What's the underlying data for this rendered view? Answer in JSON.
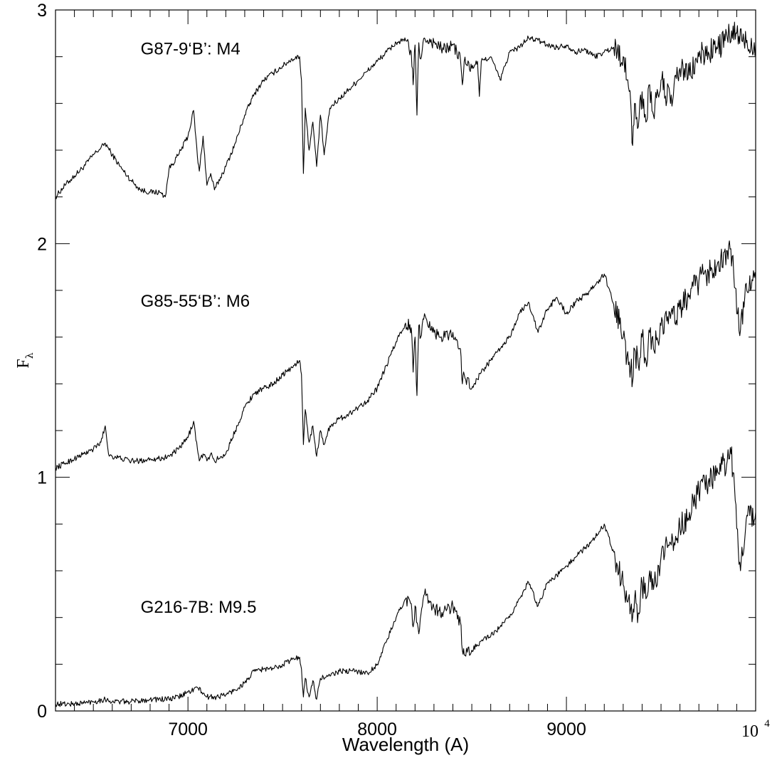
{
  "chart_data": {
    "type": "line",
    "title": "",
    "xlabel": "Wavelength (A)",
    "ylabel": "F",
    "ylabel_subscript": "λ",
    "xlim": [
      6300,
      10000
    ],
    "ylim": [
      0,
      3
    ],
    "xticks": [
      {
        "value": 7000,
        "label": "7000"
      },
      {
        "value": 8000,
        "label": "8000"
      },
      {
        "value": 9000,
        "label": "9000"
      }
    ],
    "x_end_label": {
      "base": "10",
      "exponent": "4"
    },
    "yticks": [
      {
        "value": 0,
        "label": "0"
      },
      {
        "value": 1,
        "label": "1"
      },
      {
        "value": 2,
        "label": "2"
      },
      {
        "value": 3,
        "label": "3"
      }
    ],
    "y_minor_step": 0.2,
    "x_minor_step": 100,
    "grid": false,
    "legend": "none",
    "line_color": "#000000",
    "annotations": [
      {
        "text": "G87-9‘B’: M4",
        "x": 6750,
        "y": 2.81
      },
      {
        "text": "G85-55‘B’: M6",
        "x": 6750,
        "y": 1.73
      },
      {
        "text": "G216-7B: M9.5",
        "x": 6750,
        "y": 0.42
      }
    ],
    "series": [
      {
        "spectral_type": "M4",
        "x": [
          6300,
          6350,
          6400,
          6450,
          6500,
          6540,
          6563,
          6600,
          6650,
          6700,
          6750,
          6800,
          6850,
          6880,
          6900,
          6950,
          7000,
          7030,
          7050,
          7060,
          7080,
          7100,
          7120,
          7140,
          7200,
          7250,
          7300,
          7350,
          7400,
          7450,
          7500,
          7550,
          7590,
          7600,
          7610,
          7620,
          7640,
          7660,
          7680,
          7700,
          7720,
          7750,
          7800,
          7850,
          7900,
          7950,
          8000,
          8050,
          8100,
          8150,
          8180,
          8190,
          8200,
          8210,
          8220,
          8230,
          8250,
          8300,
          8350,
          8400,
          8440,
          8450,
          8460,
          8500,
          8530,
          8540,
          8550,
          8600,
          8650,
          8700,
          8750,
          8800,
          8850,
          8900,
          8950,
          9000,
          9050,
          9100,
          9150,
          9200,
          9250,
          9300,
          9320,
          9340,
          9350,
          9360,
          9380,
          9400,
          9420,
          9440,
          9460,
          9500,
          9550,
          9600,
          9650,
          9700,
          9750,
          9800,
          9850,
          9900,
          9950,
          10000
        ],
        "y": [
          2.2,
          2.25,
          2.29,
          2.33,
          2.38,
          2.41,
          2.43,
          2.38,
          2.32,
          2.27,
          2.23,
          2.22,
          2.22,
          2.2,
          2.32,
          2.38,
          2.46,
          2.57,
          2.37,
          2.31,
          2.46,
          2.25,
          2.3,
          2.23,
          2.33,
          2.43,
          2.55,
          2.64,
          2.7,
          2.73,
          2.76,
          2.79,
          2.8,
          2.7,
          2.3,
          2.58,
          2.4,
          2.52,
          2.33,
          2.55,
          2.38,
          2.58,
          2.62,
          2.66,
          2.7,
          2.74,
          2.78,
          2.82,
          2.86,
          2.87,
          2.82,
          2.68,
          2.85,
          2.55,
          2.86,
          2.79,
          2.88,
          2.86,
          2.83,
          2.85,
          2.79,
          2.68,
          2.78,
          2.75,
          2.78,
          2.63,
          2.78,
          2.8,
          2.7,
          2.82,
          2.84,
          2.88,
          2.87,
          2.85,
          2.84,
          2.85,
          2.82,
          2.83,
          2.8,
          2.82,
          2.84,
          2.8,
          2.7,
          2.6,
          2.42,
          2.6,
          2.5,
          2.65,
          2.52,
          2.68,
          2.55,
          2.7,
          2.6,
          2.75,
          2.72,
          2.8,
          2.82,
          2.84,
          2.88,
          2.9,
          2.86,
          2.85
        ]
      },
      {
        "spectral_type": "M6",
        "x": [
          6300,
          6350,
          6400,
          6450,
          6500,
          6540,
          6563,
          6580,
          6600,
          6650,
          6700,
          6750,
          6800,
          6850,
          6900,
          6950,
          7000,
          7030,
          7050,
          7060,
          7080,
          7100,
          7120,
          7140,
          7200,
          7250,
          7300,
          7350,
          7400,
          7450,
          7500,
          7550,
          7590,
          7600,
          7610,
          7620,
          7640,
          7660,
          7680,
          7700,
          7720,
          7750,
          7800,
          7850,
          7900,
          7950,
          8000,
          8050,
          8100,
          8150,
          8180,
          8190,
          8200,
          8210,
          8220,
          8230,
          8250,
          8300,
          8350,
          8400,
          8440,
          8450,
          8460,
          8500,
          8550,
          8600,
          8650,
          8700,
          8750,
          8800,
          8850,
          8900,
          8950,
          9000,
          9050,
          9100,
          9150,
          9200,
          9250,
          9300,
          9320,
          9340,
          9350,
          9360,
          9380,
          9400,
          9420,
          9440,
          9460,
          9500,
          9550,
          9600,
          9650,
          9700,
          9750,
          9800,
          9850,
          9880,
          9900,
          9920,
          9950,
          10000
        ],
        "y": [
          1.04,
          1.06,
          1.08,
          1.1,
          1.12,
          1.15,
          1.22,
          1.1,
          1.09,
          1.08,
          1.07,
          1.07,
          1.08,
          1.08,
          1.09,
          1.12,
          1.17,
          1.24,
          1.12,
          1.07,
          1.1,
          1.07,
          1.1,
          1.07,
          1.1,
          1.2,
          1.3,
          1.36,
          1.38,
          1.4,
          1.44,
          1.47,
          1.5,
          1.44,
          1.14,
          1.29,
          1.15,
          1.22,
          1.09,
          1.2,
          1.14,
          1.22,
          1.25,
          1.27,
          1.3,
          1.33,
          1.38,
          1.48,
          1.58,
          1.66,
          1.64,
          1.45,
          1.6,
          1.35,
          1.65,
          1.6,
          1.7,
          1.62,
          1.6,
          1.62,
          1.55,
          1.4,
          1.44,
          1.38,
          1.45,
          1.5,
          1.55,
          1.6,
          1.7,
          1.75,
          1.62,
          1.72,
          1.77,
          1.7,
          1.75,
          1.78,
          1.82,
          1.87,
          1.74,
          1.6,
          1.52,
          1.47,
          1.41,
          1.55,
          1.48,
          1.6,
          1.5,
          1.62,
          1.55,
          1.65,
          1.68,
          1.72,
          1.78,
          1.84,
          1.88,
          1.92,
          1.97,
          1.95,
          1.7,
          1.63,
          1.83,
          1.85
        ]
      },
      {
        "spectral_type": "M9.5",
        "x": [
          6300,
          6400,
          6500,
          6563,
          6600,
          6700,
          6800,
          6900,
          6950,
          7000,
          7050,
          7100,
          7150,
          7200,
          7250,
          7300,
          7350,
          7400,
          7450,
          7500,
          7550,
          7590,
          7600,
          7610,
          7620,
          7640,
          7660,
          7680,
          7700,
          7750,
          7800,
          7850,
          7900,
          7950,
          8000,
          8050,
          8100,
          8150,
          8180,
          8190,
          8200,
          8220,
          8250,
          8300,
          8350,
          8400,
          8440,
          8450,
          8460,
          8500,
          8550,
          8600,
          8650,
          8700,
          8750,
          8800,
          8850,
          8900,
          8950,
          9000,
          9050,
          9100,
          9150,
          9200,
          9250,
          9300,
          9320,
          9340,
          9350,
          9360,
          9380,
          9400,
          9420,
          9440,
          9460,
          9500,
          9550,
          9600,
          9650,
          9700,
          9750,
          9800,
          9850,
          9870,
          9880,
          9900,
          9920,
          9950,
          10000
        ],
        "y": [
          0.03,
          0.03,
          0.04,
          0.05,
          0.04,
          0.04,
          0.05,
          0.05,
          0.06,
          0.08,
          0.1,
          0.06,
          0.06,
          0.07,
          0.09,
          0.12,
          0.17,
          0.18,
          0.18,
          0.2,
          0.22,
          0.23,
          0.18,
          0.06,
          0.14,
          0.06,
          0.13,
          0.05,
          0.14,
          0.15,
          0.17,
          0.17,
          0.17,
          0.16,
          0.2,
          0.3,
          0.4,
          0.48,
          0.46,
          0.36,
          0.45,
          0.33,
          0.5,
          0.44,
          0.42,
          0.45,
          0.38,
          0.26,
          0.24,
          0.26,
          0.3,
          0.32,
          0.36,
          0.4,
          0.48,
          0.55,
          0.45,
          0.55,
          0.58,
          0.62,
          0.66,
          0.7,
          0.74,
          0.8,
          0.68,
          0.54,
          0.47,
          0.44,
          0.4,
          0.48,
          0.42,
          0.55,
          0.48,
          0.6,
          0.52,
          0.66,
          0.72,
          0.78,
          0.85,
          0.94,
          0.98,
          1.02,
          1.07,
          1.1,
          1.02,
          0.78,
          0.6,
          0.82,
          0.85
        ]
      }
    ]
  }
}
